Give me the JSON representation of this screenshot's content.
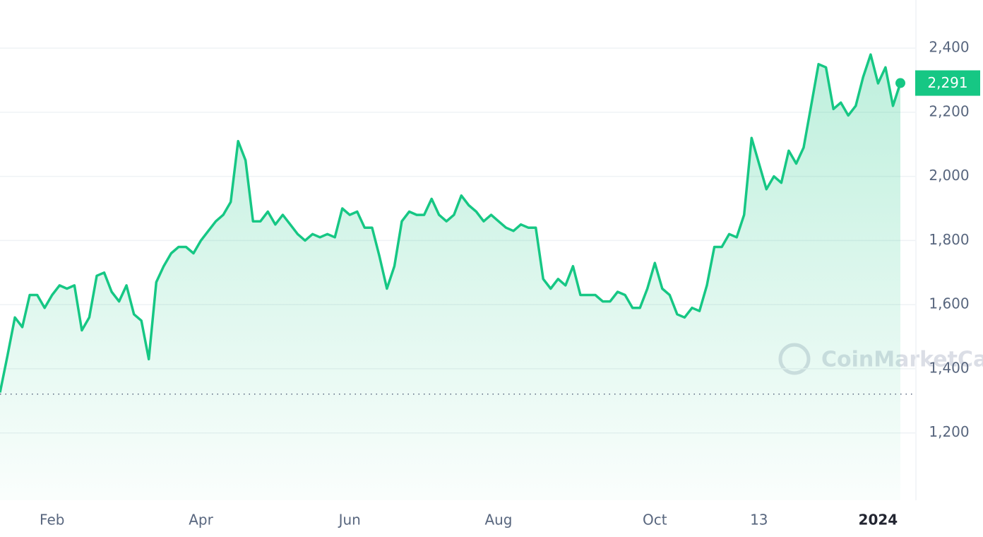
{
  "chart_data": {
    "type": "line",
    "categories": [
      null,
      null,
      null,
      null,
      null,
      null,
      null,
      "Feb",
      null,
      null,
      null,
      null,
      null,
      null,
      null,
      null,
      null,
      null,
      null,
      null,
      null,
      null,
      null,
      null,
      null,
      null,
      null,
      "Apr",
      null,
      null,
      null,
      null,
      null,
      null,
      null,
      null,
      null,
      null,
      null,
      null,
      null,
      null,
      null,
      null,
      null,
      null,
      null,
      "Jun",
      null,
      null,
      null,
      null,
      null,
      null,
      null,
      null,
      null,
      null,
      null,
      null,
      null,
      null,
      null,
      null,
      null,
      null,
      null,
      "Aug",
      null,
      null,
      null,
      null,
      null,
      null,
      null,
      null,
      null,
      null,
      null,
      null,
      null,
      null,
      null,
      null,
      null,
      null,
      null,
      null,
      "Oct",
      null,
      null,
      null,
      null,
      null,
      null,
      null,
      null,
      null,
      null,
      null,
      null,
      null,
      "13",
      null,
      null,
      null,
      null,
      null,
      null,
      null,
      null,
      null,
      null,
      null,
      null,
      null,
      null,
      null,
      "2024",
      null,
      null,
      null
    ],
    "series": [
      {
        "color": "#16c784",
        "values": [
          1326,
          1440,
          1560,
          1530,
          1630,
          1630,
          1590,
          1630,
          1660,
          1650,
          1660,
          1520,
          1560,
          1690,
          1700,
          1640,
          1610,
          1660,
          1570,
          1550,
          1430,
          1670,
          1720,
          1760,
          1780,
          1780,
          1760,
          1800,
          1830,
          1860,
          1880,
          1920,
          2110,
          2050,
          1860,
          1860,
          1890,
          1850,
          1880,
          1850,
          1820,
          1800,
          1820,
          1810,
          1820,
          1810,
          1900,
          1880,
          1890,
          1840,
          1840,
          1750,
          1650,
          1720,
          1860,
          1890,
          1880,
          1880,
          1930,
          1880,
          1860,
          1880,
          1940,
          1910,
          1890,
          1860,
          1880,
          1860,
          1840,
          1830,
          1850,
          1840,
          1840,
          1680,
          1650,
          1680,
          1660,
          1720,
          1630,
          1630,
          1630,
          1610,
          1610,
          1640,
          1630,
          1590,
          1590,
          1650,
          1730,
          1650,
          1630,
          1570,
          1560,
          1590,
          1580,
          1660,
          1780,
          1780,
          1820,
          1810,
          1880,
          2120,
          2040,
          1960,
          2000,
          1980,
          2080,
          2040,
          2090,
          2220,
          2350,
          2340,
          2210,
          2230,
          2190,
          2220,
          2310,
          2380,
          2290,
          2340,
          2220,
          2291
        ]
      }
    ],
    "ylim": [
      990,
      2550
    ],
    "yticks": [
      {
        "value": 1200,
        "label": "1,200"
      },
      {
        "value": 1400,
        "label": "1,400"
      },
      {
        "value": 1600,
        "label": "1,600"
      },
      {
        "value": 1800,
        "label": "1,800"
      },
      {
        "value": 2000,
        "label": "2,000"
      },
      {
        "value": 2200,
        "label": "2,200"
      },
      {
        "value": 2400,
        "label": "2,400"
      }
    ],
    "grid": true,
    "baseline": 1321,
    "current_price": {
      "value": 2291,
      "label": "2,291"
    },
    "watermark": "CoinMarketCap"
  }
}
